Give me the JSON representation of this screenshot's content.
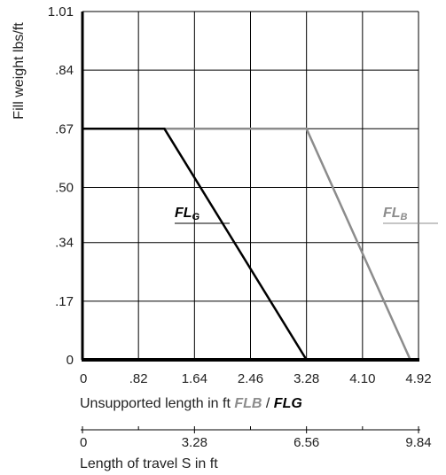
{
  "chart_data": {
    "type": "line",
    "ylabel": "Fill weight lbs/ft",
    "xlabel": {
      "prefix": "Unsupported length in ft ",
      "series_b": "FLB",
      "separator": " / ",
      "series_g": "FLG"
    },
    "xlim": [
      0,
      4.92
    ],
    "ylim": [
      0,
      1.01
    ],
    "x_ticks": [
      {
        "value": 0,
        "label": "0"
      },
      {
        "value": 0.82,
        "label": ".82"
      },
      {
        "value": 1.64,
        "label": "1.64"
      },
      {
        "value": 2.46,
        "label": "2.46"
      },
      {
        "value": 3.28,
        "label": "3.28"
      },
      {
        "value": 4.1,
        "label": "4.10"
      },
      {
        "value": 4.92,
        "label": "4.92"
      }
    ],
    "y_ticks": [
      {
        "value": 0,
        "label": "0"
      },
      {
        "value": 0.17,
        "label": ".17"
      },
      {
        "value": 0.34,
        "label": ".34"
      },
      {
        "value": 0.5,
        "label": ".50"
      },
      {
        "value": 0.67,
        "label": ".67"
      },
      {
        "value": 0.84,
        "label": ".84"
      },
      {
        "value": 1.01,
        "label": "1.01"
      }
    ],
    "grid": true,
    "series": [
      {
        "name": "FL",
        "subscript": "G",
        "color": "#000000",
        "x": [
          0,
          1.2,
          3.28
        ],
        "y": [
          0.67,
          0.67,
          0
        ]
      },
      {
        "name": "FL",
        "subscript": "B",
        "color": "#8c8c8c",
        "x": [
          0,
          3.28,
          4.8
        ],
        "y": [
          0.67,
          0.67,
          0
        ]
      }
    ],
    "secondary_axis": {
      "label": "Length of travel S in ft",
      "xlim": [
        0,
        9.84
      ],
      "ticks": [
        {
          "value": 0,
          "label": "0"
        },
        {
          "value": 3.28,
          "label": "3.28"
        },
        {
          "value": 6.56,
          "label": "6.56"
        },
        {
          "value": 9.84,
          "label": "9.84"
        }
      ],
      "minor_ticks": [
        1.64,
        4.92,
        8.2
      ]
    }
  }
}
